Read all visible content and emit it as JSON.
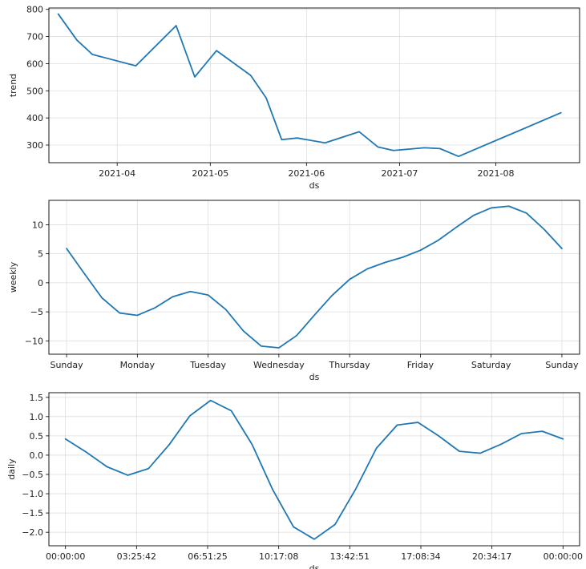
{
  "chart_data": [
    {
      "type": "line",
      "xlabel": "ds",
      "ylabel": "trend",
      "x_type": "date",
      "xlim": [
        "2021-03-10",
        "2021-08-28"
      ],
      "ylim": [
        235,
        805
      ],
      "grid": true,
      "xticks": [
        {
          "value": "2021-04-01",
          "label": "2021-04"
        },
        {
          "value": "2021-05-01",
          "label": "2021-05"
        },
        {
          "value": "2021-06-01",
          "label": "2021-06"
        },
        {
          "value": "2021-07-01",
          "label": "2021-07"
        },
        {
          "value": "2021-08-01",
          "label": "2021-08"
        }
      ],
      "yticks": [
        {
          "value": 300,
          "label": "300"
        },
        {
          "value": 400,
          "label": "400"
        },
        {
          "value": 500,
          "label": "500"
        },
        {
          "value": 600,
          "label": "600"
        },
        {
          "value": 700,
          "label": "700"
        },
        {
          "value": 800,
          "label": "800"
        }
      ],
      "series": [
        {
          "color": "#1f77b4",
          "x": [
            "2021-03-13",
            "2021-03-19",
            "2021-03-24",
            "2021-04-07",
            "2021-04-20",
            "2021-04-26",
            "2021-05-03",
            "2021-05-14",
            "2021-05-19",
            "2021-05-24",
            "2021-05-29",
            "2021-06-07",
            "2021-06-18",
            "2021-06-24",
            "2021-06-29",
            "2021-07-09",
            "2021-07-14",
            "2021-07-20",
            "2021-08-22"
          ],
          "y": [
            783,
            687,
            634,
            592,
            740,
            551,
            648,
            557,
            474,
            320,
            326,
            308,
            349,
            293,
            280,
            290,
            287,
            258,
            419
          ]
        }
      ]
    },
    {
      "type": "line",
      "xlabel": "ds",
      "ylabel": "weekly",
      "xlim": [
        -0.25,
        7.25
      ],
      "ylim": [
        -12.3,
        14.2
      ],
      "grid": true,
      "xticks": [
        {
          "value": 0,
          "label": "Sunday"
        },
        {
          "value": 1,
          "label": "Monday"
        },
        {
          "value": 2,
          "label": "Tuesday"
        },
        {
          "value": 3,
          "label": "Wednesday"
        },
        {
          "value": 4,
          "label": "Thursday"
        },
        {
          "value": 5,
          "label": "Friday"
        },
        {
          "value": 6,
          "label": "Saturday"
        },
        {
          "value": 7,
          "label": "Sunday"
        }
      ],
      "yticks": [
        {
          "value": -10,
          "label": "−10"
        },
        {
          "value": -5,
          "label": "−5"
        },
        {
          "value": 0,
          "label": "0"
        },
        {
          "value": 5,
          "label": "5"
        },
        {
          "value": 10,
          "label": "10"
        }
      ],
      "series": [
        {
          "color": "#1f77b4",
          "x": [
            0,
            0.25,
            0.5,
            0.75,
            1,
            1.25,
            1.5,
            1.75,
            2,
            2.25,
            2.5,
            2.75,
            3,
            3.25,
            3.5,
            3.75,
            4,
            4.25,
            4.5,
            4.75,
            5,
            5.25,
            5.5,
            5.75,
            6,
            6.25,
            6.5,
            6.75,
            7
          ],
          "y": [
            5.9,
            1.6,
            -2.6,
            -5.2,
            -5.6,
            -4.3,
            -2.4,
            -1.5,
            -2.1,
            -4.6,
            -8.3,
            -10.9,
            -11.2,
            -9.1,
            -5.6,
            -2.2,
            0.6,
            2.4,
            3.5,
            4.4,
            5.6,
            7.3,
            9.5,
            11.6,
            12.9,
            13.2,
            12.0,
            9.2,
            5.9
          ]
        }
      ]
    },
    {
      "type": "line",
      "xlabel": "ds",
      "ylabel": "daily",
      "x_unit": "hours",
      "xlim": [
        -0.8,
        24.8
      ],
      "ylim": [
        -2.35,
        1.62
      ],
      "grid": true,
      "xticks": [
        {
          "value": 0,
          "label": "00:00:00"
        },
        {
          "value": 3.428,
          "label": "03:25:42"
        },
        {
          "value": 6.857,
          "label": "06:51:25"
        },
        {
          "value": 10.286,
          "label": "10:17:08"
        },
        {
          "value": 13.714,
          "label": "13:42:51"
        },
        {
          "value": 17.143,
          "label": "17:08:34"
        },
        {
          "value": 20.571,
          "label": "20:34:17"
        },
        {
          "value": 24,
          "label": "00:00:00"
        }
      ],
      "yticks": [
        {
          "value": -2.0,
          "label": "−2.0"
        },
        {
          "value": -1.5,
          "label": "−1.5"
        },
        {
          "value": -1.0,
          "label": "−1.0"
        },
        {
          "value": -0.5,
          "label": "−0.5"
        },
        {
          "value": 0.0,
          "label": "0.0"
        },
        {
          "value": 0.5,
          "label": "0.5"
        },
        {
          "value": 1.0,
          "label": "1.0"
        },
        {
          "value": 1.5,
          "label": "1.5"
        }
      ],
      "series": [
        {
          "color": "#1f77b4",
          "x": [
            0,
            1,
            2,
            3,
            4,
            5,
            6,
            7,
            8,
            9,
            10,
            11,
            12,
            13,
            14,
            15,
            16,
            17,
            18,
            19,
            20,
            21,
            22,
            23,
            24
          ],
          "y": [
            0.42,
            0.08,
            -0.3,
            -0.52,
            -0.35,
            0.27,
            1.02,
            1.42,
            1.15,
            0.28,
            -0.9,
            -1.86,
            -2.18,
            -1.8,
            -0.88,
            0.18,
            0.78,
            0.85,
            0.5,
            0.1,
            0.05,
            0.28,
            0.56,
            0.62,
            0.42
          ]
        }
      ]
    }
  ]
}
